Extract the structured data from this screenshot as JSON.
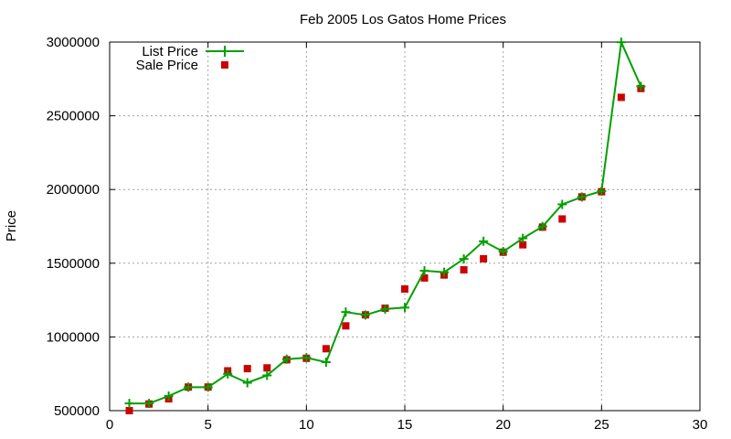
{
  "chart_data": {
    "type": "line",
    "title": "Feb 2005 Los Gatos Home Prices",
    "xlabel": "",
    "ylabel": "Price",
    "xlim": [
      0,
      30
    ],
    "ylim": [
      500000,
      3000000
    ],
    "xticks": [
      0,
      5,
      10,
      15,
      20,
      25,
      30
    ],
    "yticks": [
      500000,
      1000000,
      1500000,
      2000000,
      2500000,
      3000000
    ],
    "grid": true,
    "legend": "top-left",
    "series": [
      {
        "name": "List Price",
        "style": "line-plus",
        "color": "#00a000",
        "x": [
          1,
          2,
          3,
          4,
          5,
          6,
          7,
          8,
          9,
          10,
          11,
          12,
          13,
          14,
          15,
          16,
          17,
          18,
          19,
          20,
          21,
          22,
          23,
          24,
          25,
          26,
          27
        ],
        "y": [
          549000,
          549000,
          599000,
          659000,
          659000,
          749000,
          689000,
          739000,
          849000,
          859000,
          829000,
          1169000,
          1149000,
          1189000,
          1199000,
          1449000,
          1439000,
          1529000,
          1649000,
          1579000,
          1669000,
          1749000,
          1899000,
          1949000,
          1989000,
          2999000,
          2699000
        ]
      },
      {
        "name": "Sale Price",
        "style": "square",
        "color": "#cc0000",
        "x": [
          1,
          2,
          3,
          4,
          5,
          6,
          7,
          8,
          9,
          10,
          11,
          12,
          13,
          14,
          15,
          16,
          17,
          18,
          19,
          20,
          21,
          22,
          23,
          24,
          25,
          26,
          27
        ],
        "y": [
          500000,
          545000,
          580000,
          660000,
          660000,
          770000,
          785000,
          790000,
          845000,
          855000,
          920000,
          1075000,
          1150000,
          1195000,
          1325000,
          1400000,
          1420000,
          1455000,
          1530000,
          1575000,
          1625000,
          1745000,
          1800000,
          1950000,
          1985000,
          2625000,
          2685000
        ]
      }
    ]
  }
}
